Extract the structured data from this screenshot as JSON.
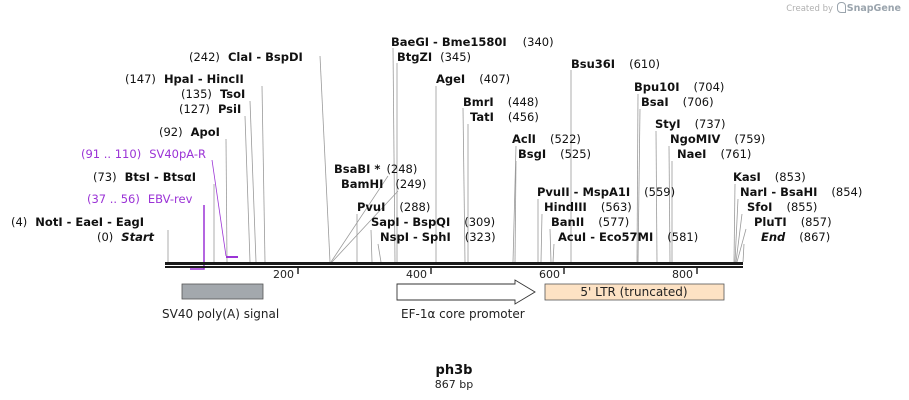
{
  "credit": {
    "prefix": "Created by",
    "brand": "SnapGene"
  },
  "plasmid": {
    "name": "ph3b",
    "length_label": "867 bp"
  },
  "sites": [
    {
      "pos": "(242)",
      "names": [
        "ClaI",
        "BspDI"
      ]
    },
    {
      "pos": "(147)",
      "names": [
        "HpaI",
        "HincII"
      ]
    },
    {
      "pos": "(135)",
      "names": [
        "TsoI"
      ]
    },
    {
      "pos": "(127)",
      "names": [
        "PsiI"
      ]
    },
    {
      "pos": "(92)",
      "names": [
        "ApoI"
      ]
    },
    {
      "pos": "(73)",
      "names": [
        "BtsI",
        "BtsαI"
      ]
    },
    {
      "pos": "(4)",
      "names": [
        "NotI",
        "EaeI",
        "EagI"
      ]
    },
    {
      "pos": "(0)",
      "names": [
        "Start"
      ]
    },
    {
      "pos": "(340)",
      "names": [
        "BaeGI",
        "Bme1580I"
      ]
    },
    {
      "pos": "(345)",
      "names": [
        "BtgZI"
      ]
    },
    {
      "pos": "(407)",
      "names": [
        "AgeI"
      ]
    },
    {
      "pos": "(448)",
      "names": [
        "BmrI"
      ]
    },
    {
      "pos": "(456)",
      "names": [
        "TatI"
      ]
    },
    {
      "pos": "(248)",
      "names": [
        "BsaBI *"
      ]
    },
    {
      "pos": "(249)",
      "names": [
        "BamHI"
      ]
    },
    {
      "pos": "(288)",
      "names": [
        "PvuI"
      ]
    },
    {
      "pos": "(309)",
      "names": [
        "SapI",
        "BspQI"
      ]
    },
    {
      "pos": "(323)",
      "names": [
        "NspI",
        "SphI"
      ]
    },
    {
      "pos": "(610)",
      "names": [
        "Bsu36I"
      ]
    },
    {
      "pos": "(522)",
      "names": [
        "AclI"
      ]
    },
    {
      "pos": "(525)",
      "names": [
        "BsgI"
      ]
    },
    {
      "pos": "(559)",
      "names": [
        "PvuII",
        "MspA1I"
      ]
    },
    {
      "pos": "(563)",
      "names": [
        "HindIII"
      ]
    },
    {
      "pos": "(577)",
      "names": [
        "BanII"
      ]
    },
    {
      "pos": "(581)",
      "names": [
        "AcuI",
        "Eco57MI"
      ]
    },
    {
      "pos": "(704)",
      "names": [
        "Bpu10I"
      ]
    },
    {
      "pos": "(706)",
      "names": [
        "BsaI"
      ]
    },
    {
      "pos": "(737)",
      "names": [
        "StyI"
      ]
    },
    {
      "pos": "(759)",
      "names": [
        "NgoMIV"
      ]
    },
    {
      "pos": "(761)",
      "names": [
        "NaeI"
      ]
    },
    {
      "pos": "(853)",
      "names": [
        "KasI"
      ]
    },
    {
      "pos": "(854)",
      "names": [
        "NarI",
        "BsaHI"
      ]
    },
    {
      "pos": "(855)",
      "names": [
        "SfoI"
      ]
    },
    {
      "pos": "(857)",
      "names": [
        "PluTI"
      ]
    },
    {
      "pos": "(867)",
      "names": [
        "End"
      ]
    }
  ],
  "primers": [
    {
      "range": "(91 .. 110)",
      "name": "SV40pA-R"
    },
    {
      "range": "(37 .. 56)",
      "name": "EBV-rev"
    }
  ],
  "ruler": [
    "200",
    "400",
    "600",
    "800"
  ],
  "features": [
    {
      "name": "SV40 poly(A) signal",
      "color": "#a3a8ad"
    },
    {
      "name": "EF-1α core promoter",
      "color": "#ffffff"
    },
    {
      "name": "5' LTR (truncated)",
      "color": "#fde2c4"
    }
  ],
  "colors": {
    "primer": "#9b33d6",
    "lead": "#9a9a9a",
    "backbone": "#1a1a1a"
  }
}
